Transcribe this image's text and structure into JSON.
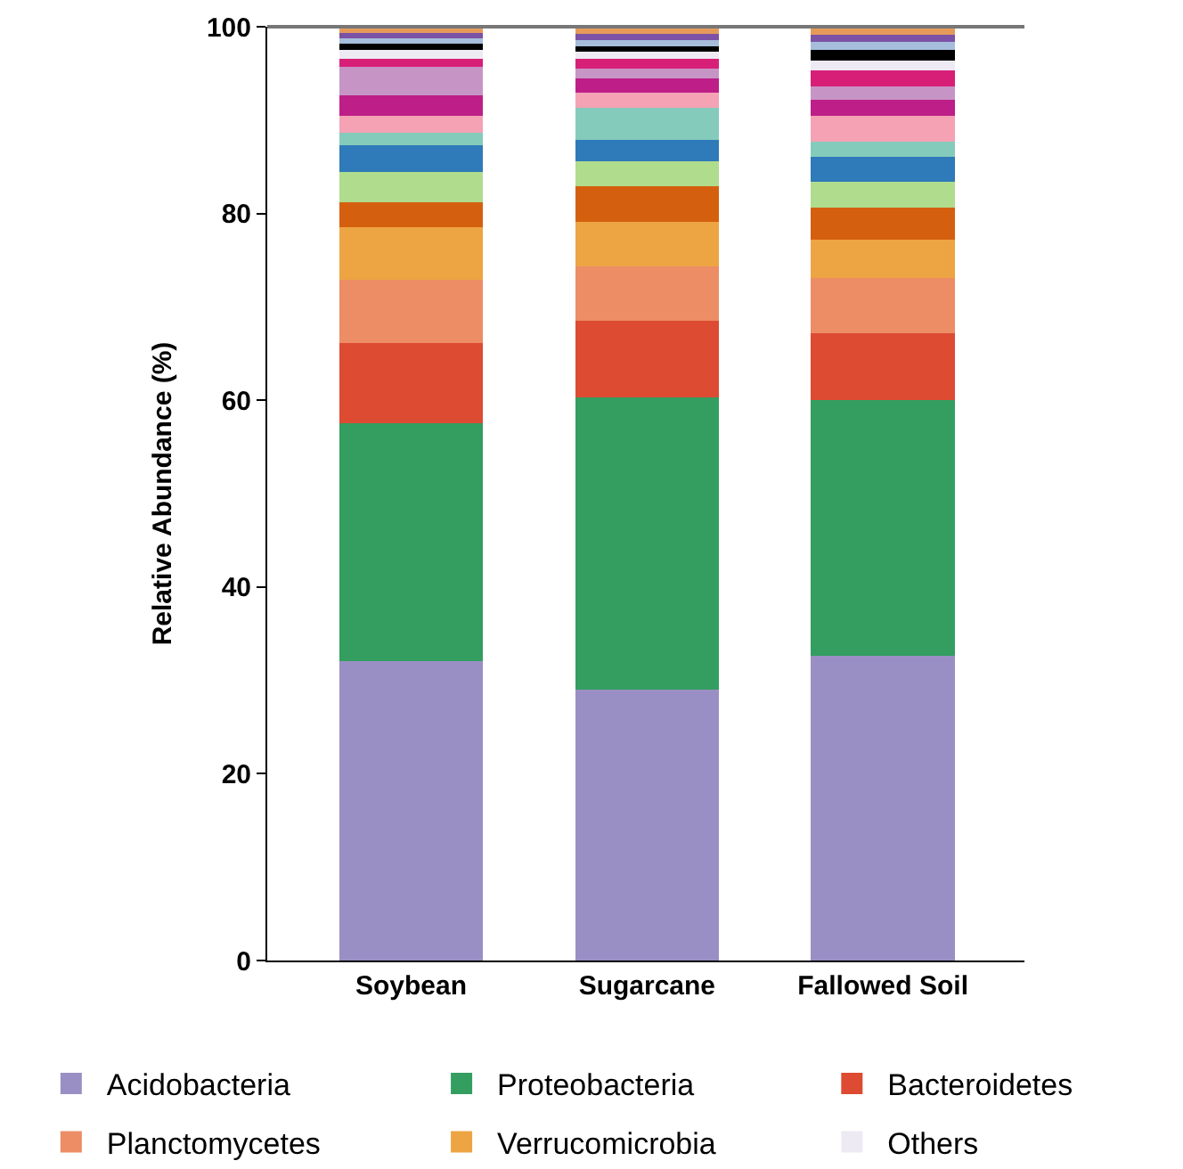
{
  "chart_data": {
    "type": "bar",
    "stacked": true,
    "ylabel": "Relative Abundance (%)",
    "categories": [
      "Soybean",
      "Sugarcane",
      "Fallowed Soil"
    ],
    "ylim": [
      0,
      100
    ],
    "yticks": [
      0,
      20,
      40,
      60,
      80,
      100
    ],
    "legend": "bottom",
    "series": [
      {
        "name": "Acidobacteria",
        "color": "#9a8fc4",
        "values": [
          32.1,
          29.0,
          32.6
        ]
      },
      {
        "name": "Proteobacteria",
        "color": "#339e60",
        "values": [
          25.4,
          31.3,
          27.4
        ]
      },
      {
        "name": "Bacteroidetes",
        "color": "#dc4b32",
        "values": [
          8.6,
          8.2,
          7.2
        ]
      },
      {
        "name": "Planctomycetes",
        "color": "#ec8d66",
        "values": [
          6.8,
          5.8,
          5.9
        ]
      },
      {
        "name": "Verrucomicrobia",
        "color": "#eda443",
        "values": [
          5.6,
          4.8,
          4.1
        ]
      },
      {
        "color": "#d4600f",
        "values": [
          2.7,
          3.8,
          3.4
        ]
      },
      {
        "color": "#b0dc8e",
        "values": [
          3.2,
          2.7,
          2.8
        ]
      },
      {
        "color": "#2f7ab8",
        "values": [
          2.9,
          2.3,
          2.7
        ]
      },
      {
        "color": "#84cbbb",
        "values": [
          1.3,
          3.4,
          1.6
        ]
      },
      {
        "color": "#f4a2b4",
        "values": [
          1.9,
          1.6,
          2.8
        ]
      },
      {
        "color": "#be1e88",
        "values": [
          2.2,
          1.6,
          1.7
        ]
      },
      {
        "color": "#c695c6",
        "values": [
          3.0,
          1.0,
          1.4
        ]
      },
      {
        "color": "#d81f78",
        "values": [
          0.9,
          1.1,
          1.7
        ]
      },
      {
        "name": "Others",
        "color": "#eeeaf4",
        "values": [
          0.9,
          0.7,
          1.1
        ]
      },
      {
        "color": "#000000",
        "values": [
          0.7,
          0.6,
          1.1
        ]
      },
      {
        "color": "#a6bddb",
        "values": [
          0.6,
          0.7,
          0.9
        ]
      },
      {
        "color": "#7b52a6",
        "values": [
          0.5,
          0.6,
          0.7
        ]
      },
      {
        "color": "#e69a5a",
        "values": [
          0.7,
          0.8,
          0.9
        ]
      }
    ]
  }
}
